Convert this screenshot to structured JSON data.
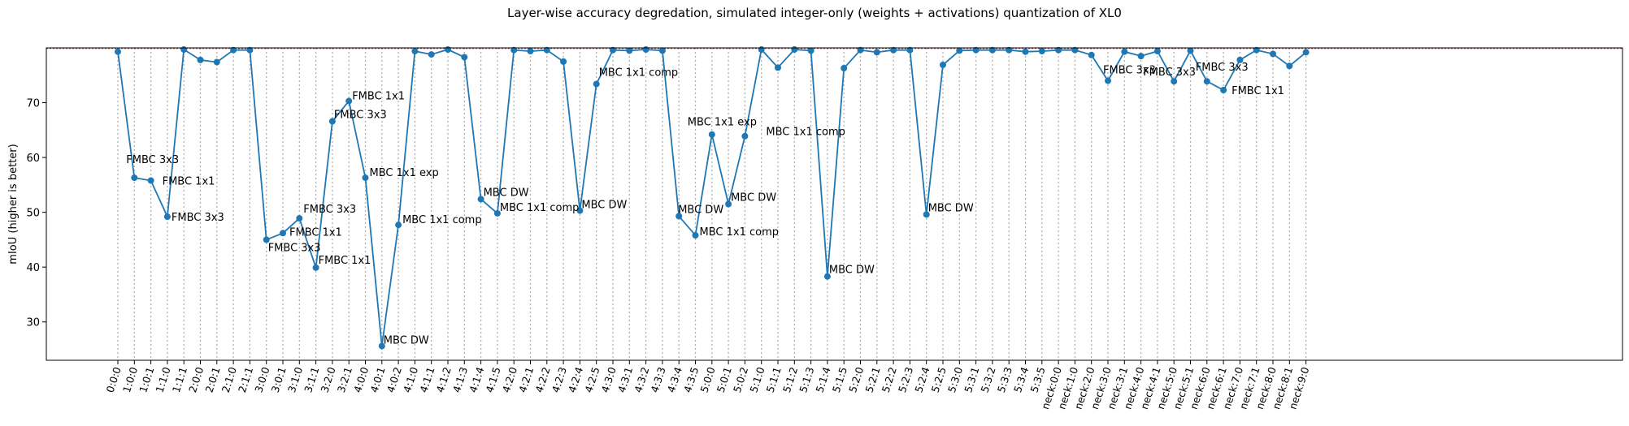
{
  "chart_data": {
    "type": "line",
    "title": "Layer-wise accuracy degredation, simulated integer-only (weights + activations) quantization of XL0",
    "ylabel": "mIoU (higher is better)",
    "xlabel": "",
    "ylim": [
      23,
      80
    ],
    "yticks": [
      30,
      40,
      50,
      60,
      70
    ],
    "reference_line": 79.9,
    "grid": "vertical dotted",
    "colors": {
      "line": "#1f77b4",
      "reference": "#d62728",
      "grid": "#b0b0b0"
    },
    "categories": [
      "0:0:0",
      "1:0:0",
      "1:0:1",
      "1:1:0",
      "1:1:1",
      "2:0:0",
      "2:0:1",
      "2:1:0",
      "2:1:1",
      "3:0:0",
      "3:0:1",
      "3:1:0",
      "3:1:1",
      "3:2:0",
      "3:2:1",
      "4:0:0",
      "4:0:1",
      "4:0:2",
      "4:1:0",
      "4:1:1",
      "4:1:2",
      "4:1:3",
      "4:1:4",
      "4:1:5",
      "4:2:0",
      "4:2:1",
      "4:2:2",
      "4:2:3",
      "4:2:4",
      "4:2:5",
      "4:3:0",
      "4:3:1",
      "4:3:2",
      "4:3:3",
      "4:3:4",
      "4:3:5",
      "5:0:0",
      "5:0:1",
      "5:0:2",
      "5:1:0",
      "5:1:1",
      "5:1:2",
      "5:1:3",
      "5:1:4",
      "5:1:5",
      "5:2:0",
      "5:2:1",
      "5:2:2",
      "5:2:3",
      "5:2:4",
      "5:2:5",
      "5:3:0",
      "5:3:1",
      "5:3:2",
      "5:3:3",
      "5:3:4",
      "5:3:5",
      "neck:0:0",
      "neck:1:0",
      "neck:2:0",
      "neck:3:0",
      "neck:3:1",
      "neck:4:0",
      "neck:4:1",
      "neck:5:0",
      "neck:5:1",
      "neck:6:0",
      "neck:6:1",
      "neck:7:0",
      "neck:7:1",
      "neck:8:0",
      "neck:8:1",
      "neck:9:0"
    ],
    "values": [
      79.3,
      56.3,
      55.8,
      49.2,
      79.7,
      77.8,
      77.4,
      79.6,
      79.6,
      45.0,
      46.2,
      48.9,
      39.9,
      66.6,
      70.3,
      56.3,
      25.6,
      47.7,
      79.4,
      78.8,
      79.7,
      78.3,
      52.4,
      49.8,
      79.6,
      79.4,
      79.6,
      77.5,
      50.3,
      73.4,
      79.6,
      79.5,
      79.7,
      79.5,
      49.3,
      45.8,
      64.2,
      51.5,
      63.9,
      79.7,
      76.4,
      79.7,
      79.5,
      38.3,
      76.3,
      79.6,
      79.2,
      79.6,
      79.6,
      49.6,
      76.9,
      79.5,
      79.6,
      79.6,
      79.6,
      79.3,
      79.4,
      79.6,
      79.6,
      78.7,
      74.0,
      79.3,
      78.5,
      79.4,
      73.9,
      79.5,
      73.9,
      72.3,
      77.8,
      79.6,
      78.9,
      76.7,
      79.2
    ],
    "annotations": [
      {
        "index": 1,
        "text": "FMBC 3x3",
        "dx": -10,
        "dy": -18
      },
      {
        "index": 2,
        "text": "FMBC 1x1",
        "dx": 14,
        "dy": 5
      },
      {
        "index": 3,
        "text": "FMBC 3x3",
        "dx": 5,
        "dy": 5
      },
      {
        "index": 9,
        "text": "FMBC 3x3",
        "dx": 2,
        "dy": 14
      },
      {
        "index": 10,
        "text": "FMBC 1x1",
        "dx": 8,
        "dy": 3
      },
      {
        "index": 11,
        "text": "FMBC 3x3",
        "dx": 5,
        "dy": -7
      },
      {
        "index": 12,
        "text": "FMBC 1x1",
        "dx": 3,
        "dy": -5
      },
      {
        "index": 13,
        "text": "FMBC 3x3",
        "dx": 2,
        "dy": -4
      },
      {
        "index": 14,
        "text": "FMBC 1x1",
        "dx": 4,
        "dy": -2
      },
      {
        "index": 15,
        "text": "MBC 1x1 exp",
        "dx": 5,
        "dy": -2
      },
      {
        "index": 16,
        "text": "MBC DW",
        "dx": 2,
        "dy": -3
      },
      {
        "index": 17,
        "text": "MBC 1x1 comp",
        "dx": 5,
        "dy": -2
      },
      {
        "index": 22,
        "text": "MBC DW",
        "dx": 3,
        "dy": -4
      },
      {
        "index": 23,
        "text": "MBC 1x1 comp",
        "dx": 3,
        "dy": -3
      },
      {
        "index": 28,
        "text": "MBC DW",
        "dx": 2,
        "dy": -3
      },
      {
        "index": 29,
        "text": "MBC 1x1 comp",
        "dx": 3,
        "dy": -10
      },
      {
        "index": 34,
        "text": "MBC DW",
        "dx": -1,
        "dy": -4
      },
      {
        "index": 35,
        "text": "MBC 1x1 comp",
        "dx": 5,
        "dy": 0
      },
      {
        "index": 36,
        "text": "MBC 1x1 exp",
        "dx": -30,
        "dy": -11
      },
      {
        "index": 37,
        "text": "MBC DW",
        "dx": 3,
        "dy": -4
      },
      {
        "index": 38,
        "text": "MBC 1x1 comp",
        "dx": 26,
        "dy": -1
      },
      {
        "index": 43,
        "text": "MBC DW",
        "dx": 2,
        "dy": -4
      },
      {
        "index": 49,
        "text": "MBC DW",
        "dx": 2,
        "dy": -4
      },
      {
        "index": 60,
        "text": "FMBC 3x3",
        "dx": -6,
        "dy": -9
      },
      {
        "index": 64,
        "text": "FMBC 3x3",
        "dx": -38,
        "dy": -7
      },
      {
        "index": 66,
        "text": "FMBC 3x3",
        "dx": -14,
        "dy": -13
      },
      {
        "index": 67,
        "text": "FMBC 1x1",
        "dx": 10,
        "dy": 5
      }
    ]
  }
}
